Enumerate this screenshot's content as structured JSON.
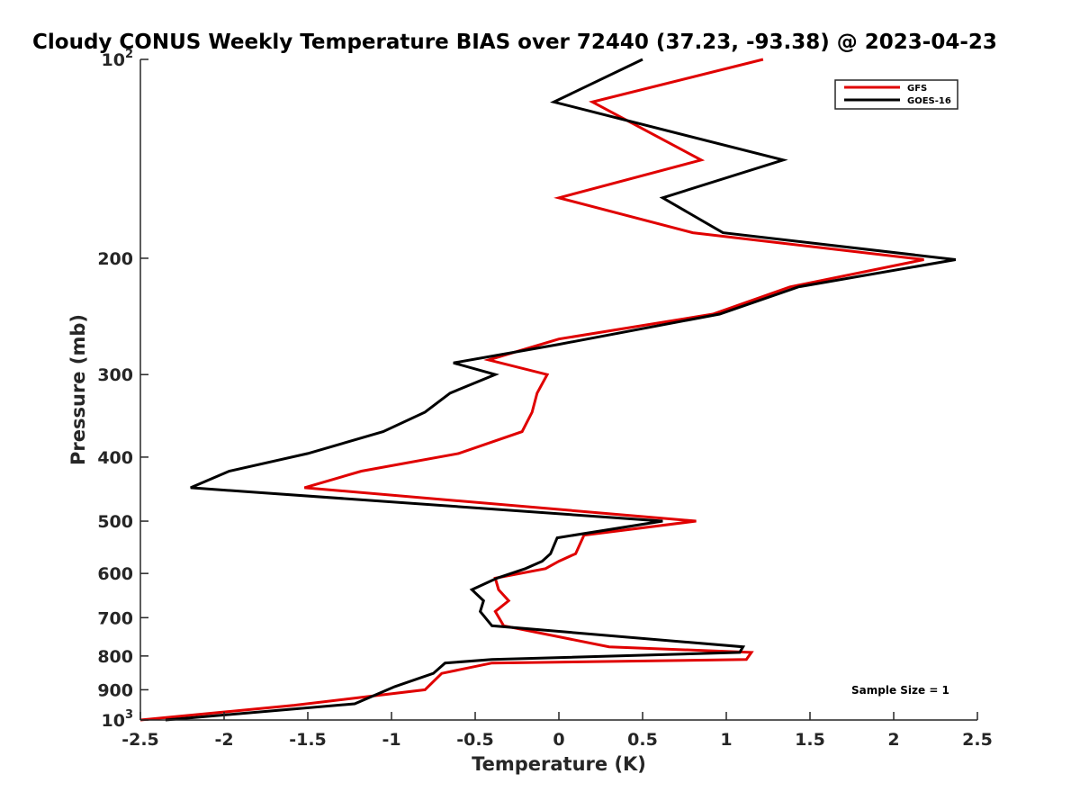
{
  "chart_data": {
    "type": "line",
    "title": "Cloudy CONUS Weekly Temperature BIAS over 72440 (37.23, -93.38) @ 2023-04-23",
    "xlabel": "Temperature (K)",
    "ylabel": "Pressure (mb)",
    "xlim": [
      -2.5,
      2.5
    ],
    "ylim": [
      100,
      1000
    ],
    "yscale": "log",
    "yreversed": true,
    "grid": false,
    "legend_position": "top-right",
    "x_ticks": [
      -2.5,
      -2,
      -1.5,
      -1,
      -0.5,
      0,
      0.5,
      1,
      1.5,
      2,
      2.5
    ],
    "x_tick_labels": [
      "-2.5",
      "-2",
      "-1.5",
      "-1",
      "-0.5",
      "0",
      "0.5",
      "1",
      "1.5",
      "2",
      "2.5"
    ],
    "y_ticks": [
      {
        "value": 100,
        "base": "10",
        "exp": "2"
      },
      {
        "value": 200,
        "label": "200"
      },
      {
        "value": 300,
        "label": "300"
      },
      {
        "value": 400,
        "label": "400"
      },
      {
        "value": 500,
        "label": "500"
      },
      {
        "value": 600,
        "label": "600"
      },
      {
        "value": 700,
        "label": "700"
      },
      {
        "value": 800,
        "label": "800"
      },
      {
        "value": 900,
        "label": "900"
      },
      {
        "value": 1000,
        "base": "10",
        "exp": "3"
      }
    ],
    "annotation": "Sample Size = 1",
    "series": [
      {
        "name": "GFS",
        "color": "#e00000",
        "x": [
          1.22,
          0.2,
          0.85,
          0.0,
          0.8,
          2.18,
          1.38,
          0.92,
          0.0,
          -0.42,
          -0.07,
          -0.13,
          -0.16,
          -0.22,
          -0.6,
          -1.18,
          -1.52,
          0.82,
          0.15,
          0.1,
          0.0,
          -0.08,
          -0.38,
          -0.36,
          -0.3,
          -0.38,
          -0.33,
          0.3,
          1.15,
          1.12,
          -0.4,
          -0.7,
          -0.8,
          -1.58,
          -2.5
        ],
        "y": [
          100,
          116,
          142,
          162,
          183,
          201,
          221,
          243,
          265,
          285,
          300,
          320,
          342,
          366,
          395,
          420,
          445,
          500,
          525,
          560,
          575,
          590,
          610,
          635,
          660,
          685,
          720,
          775,
          790,
          810,
          820,
          850,
          900,
          950,
          1000
        ]
      },
      {
        "name": "GOES-16",
        "color": "#000000",
        "x": [
          0.5,
          -0.03,
          1.34,
          0.62,
          0.98,
          2.37,
          1.43,
          0.96,
          0.0,
          -0.63,
          -0.38,
          -0.65,
          -0.8,
          -1.05,
          -1.5,
          -1.97,
          -2.2,
          0.62,
          -0.01,
          -0.05,
          -0.1,
          -0.2,
          -0.37,
          -0.52,
          -0.45,
          -0.47,
          -0.4,
          1.1,
          1.08,
          -0.4,
          -0.68,
          -0.75,
          -0.98,
          -1.22,
          -2.35
        ],
        "y": [
          100,
          116,
          142,
          162,
          183,
          201,
          221,
          243,
          270,
          288,
          300,
          320,
          342,
          366,
          395,
          420,
          445,
          500,
          530,
          560,
          575,
          590,
          610,
          635,
          660,
          685,
          720,
          775,
          790,
          810,
          820,
          850,
          890,
          945,
          1000
        ]
      }
    ]
  }
}
